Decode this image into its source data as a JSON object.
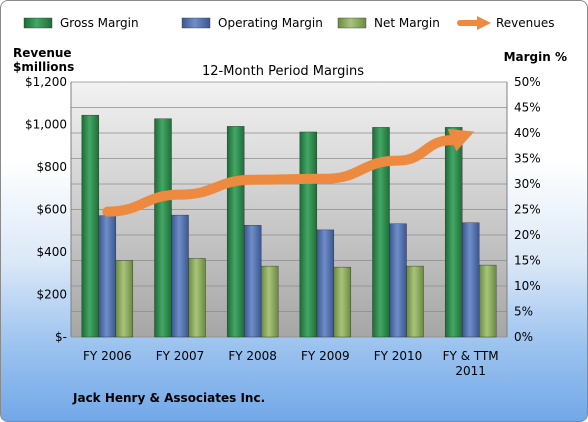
{
  "chart_data": {
    "type": "bar",
    "title": "12-Month Period Margins",
    "categories": [
      "FY 2006",
      "FY 2007",
      "FY 2008",
      "FY 2009",
      "FY 2010",
      "FY & TTM 2011"
    ],
    "y_left_label": [
      "Revenue",
      "$millions"
    ],
    "y_right_label": "Margin %",
    "y_left_ticks": [
      "$-",
      "$200",
      "$400",
      "$600",
      "$800",
      "$1,000",
      "$1,200"
    ],
    "y_right_ticks": [
      "0%",
      "5%",
      "10%",
      "15%",
      "20%",
      "25%",
      "30%",
      "35%",
      "40%",
      "45%",
      "50%"
    ],
    "ylim_left": [
      0,
      1200
    ],
    "ylim_right": [
      0,
      50
    ],
    "grid": true,
    "legend_position": "top",
    "series": [
      {
        "name": "Gross Margin",
        "axis": "right",
        "kind": "bar",
        "color": "#2e8b4e",
        "values": [
          43.5,
          42.8,
          41.3,
          40.2,
          41.1,
          41.1
        ]
      },
      {
        "name": "Operating Margin",
        "axis": "right",
        "kind": "bar",
        "color": "#4f6fae",
        "values": [
          23.8,
          23.9,
          21.9,
          21.0,
          22.2,
          22.4
        ]
      },
      {
        "name": "Net Margin",
        "axis": "right",
        "kind": "bar",
        "color": "#86a85a",
        "values": [
          15.0,
          15.4,
          13.9,
          13.7,
          13.9,
          14.1
        ]
      },
      {
        "name": "Revenues",
        "axis": "left",
        "kind": "line",
        "color": "#ee8a3f",
        "values": [
          590,
          670,
          740,
          745,
          830,
          960
        ]
      }
    ],
    "footer": "Jack Henry & Associates Inc."
  }
}
